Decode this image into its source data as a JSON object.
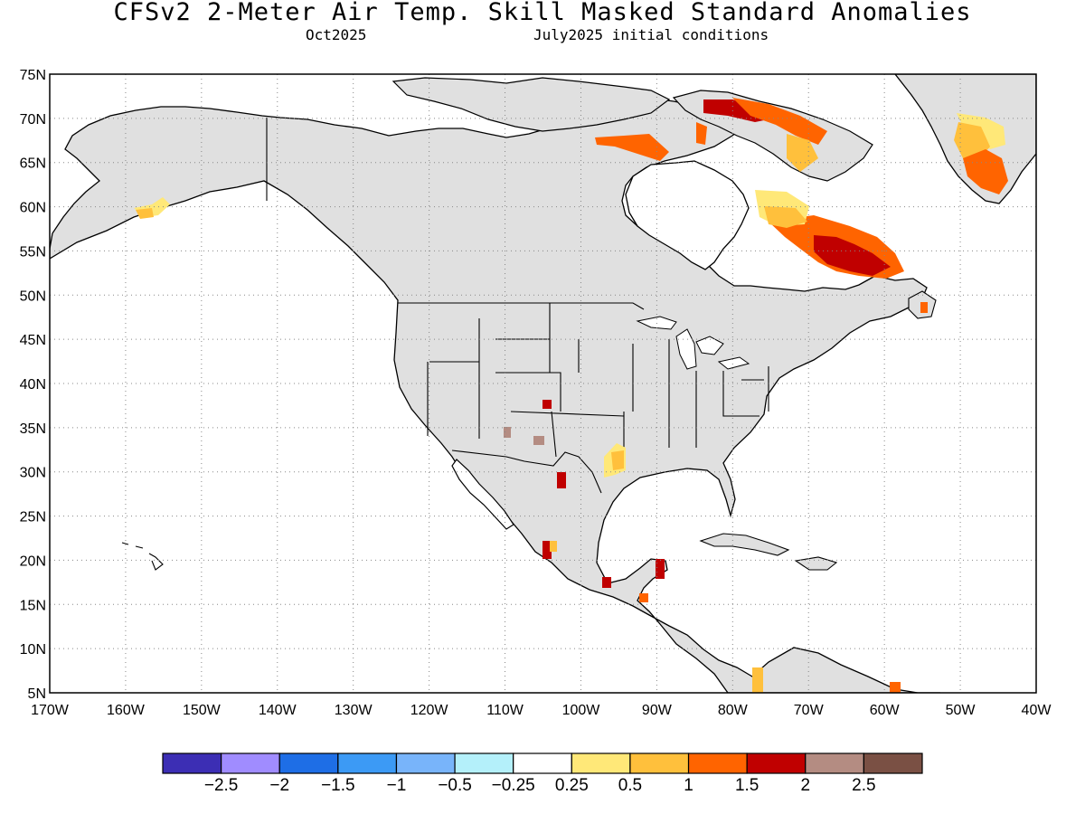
{
  "title": "CFSv2 2-Meter Air Temp. Skill Masked Standard Anomalies",
  "subtitle_left": "Oct2025",
  "subtitle_right": "July2025 initial conditions",
  "axes": {
    "lat_ticks": [
      "75N",
      "70N",
      "65N",
      "60N",
      "55N",
      "50N",
      "45N",
      "40N",
      "35N",
      "30N",
      "25N",
      "20N",
      "15N",
      "10N",
      "5N"
    ],
    "lon_ticks": [
      "170W",
      "160W",
      "150W",
      "140W",
      "130W",
      "120W",
      "110W",
      "100W",
      "90W",
      "80W",
      "70W",
      "60W",
      "50W",
      "40W"
    ],
    "lat_range": [
      5,
      75
    ],
    "lon_range": [
      -170,
      -40
    ],
    "grid": "dotted"
  },
  "colors": {
    "land_masked": "#e0e0e0",
    "ocean": "#ffffff",
    "coast": "#000000"
  },
  "colorbar": {
    "colors": [
      "#3c2eb4",
      "#a08cff",
      "#1e6ee6",
      "#3c9af5",
      "#78b4fa",
      "#b4f0fa",
      "#ffffff",
      "#ffe878",
      "#ffc03c",
      "#ff6400",
      "#c00000",
      "#b48c82",
      "#7a5044"
    ],
    "labels": [
      "-2.5",
      "-2",
      "-1.5",
      "-1",
      "-0.5",
      "-0.25",
      "0.25",
      "0.5",
      "1",
      "1.5",
      "2",
      "2.5"
    ]
  },
  "anomaly_regions": [
    {
      "region": "Labrador / Quebec",
      "level": "2"
    },
    {
      "region": "Baffin Island",
      "level": "2"
    },
    {
      "region": "Greenland",
      "level": "1.5"
    },
    {
      "region": "Alaska Peninsula",
      "level": "0.5"
    },
    {
      "region": "Louisiana / East Texas",
      "level": "0.5"
    },
    {
      "region": "West Texas",
      "level": "2"
    },
    {
      "region": "Mexico / Yucatan",
      "level": "2"
    },
    {
      "region": "New Mexico / Arizona",
      "level": "2.5"
    }
  ]
}
